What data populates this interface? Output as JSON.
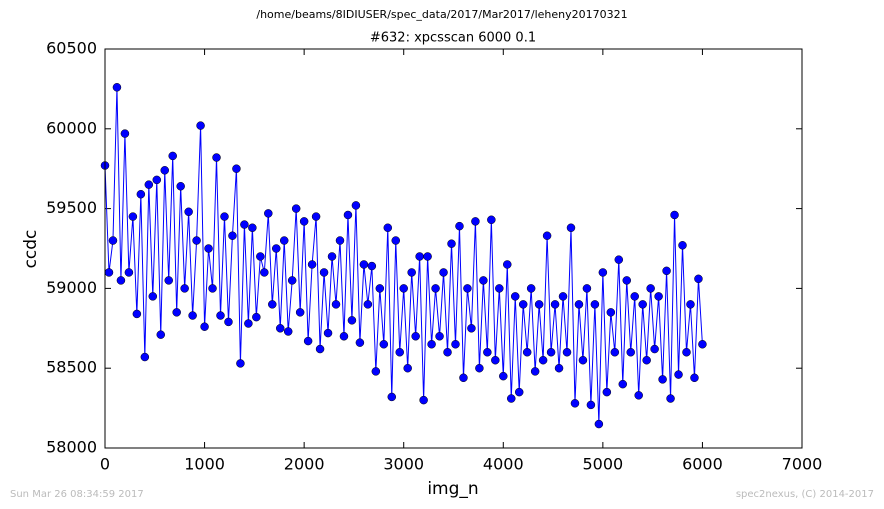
{
  "chart_data": {
    "type": "line",
    "suptitle": "/home/beams/8IDIUSER/spec_data/2017/Mar2017/leheny20170321",
    "title": "#632: xpcsscan 6000 0.1",
    "x_label": "img_n",
    "y_label": "ccdc",
    "footer_left": "Sun Mar 26 08:34:59 2017",
    "footer_right": "spec2nexus, (C) 2014-2017",
    "color": "#0000ff",
    "marker": true,
    "xlim": [
      0,
      7000
    ],
    "xticks": [
      0,
      1000,
      2000,
      3000,
      4000,
      5000,
      6000,
      7000
    ],
    "ylim": [
      58000,
      60500
    ],
    "yticks": [
      58000,
      58500,
      59000,
      59500,
      60000,
      60500
    ],
    "x": [
      0,
      40,
      80,
      120,
      160,
      200,
      240,
      280,
      320,
      360,
      400,
      440,
      480,
      520,
      560,
      600,
      640,
      680,
      720,
      760,
      800,
      840,
      880,
      920,
      960,
      1000,
      1040,
      1080,
      1120,
      1160,
      1200,
      1240,
      1280,
      1320,
      1360,
      1400,
      1440,
      1480,
      1520,
      1560,
      1600,
      1640,
      1680,
      1720,
      1760,
      1800,
      1840,
      1880,
      1920,
      1960,
      2000,
      2040,
      2080,
      2120,
      2160,
      2200,
      2240,
      2280,
      2320,
      2360,
      2400,
      2440,
      2480,
      2520,
      2560,
      2600,
      2640,
      2680,
      2720,
      2760,
      2800,
      2840,
      2880,
      2920,
      2960,
      3000,
      3040,
      3080,
      3120,
      3160,
      3200,
      3240,
      3280,
      3320,
      3360,
      3400,
      3440,
      3480,
      3520,
      3560,
      3600,
      3640,
      3680,
      3720,
      3760,
      3800,
      3840,
      3880,
      3920,
      3960,
      4000,
      4040,
      4080,
      4120,
      4160,
      4200,
      4240,
      4280,
      4320,
      4360,
      4400,
      4440,
      4480,
      4520,
      4560,
      4600,
      4640,
      4680,
      4720,
      4760,
      4800,
      4840,
      4880,
      4920,
      4960,
      5000,
      5040,
      5080,
      5120,
      5160,
      5200,
      5240,
      5280,
      5320,
      5360,
      5400,
      5440,
      5480,
      5520,
      5560,
      5600,
      5640,
      5680,
      5720,
      5760,
      5800,
      5840,
      5880,
      5920,
      5960,
      6000
    ],
    "values": [
      59770,
      59100,
      59300,
      60260,
      59050,
      59970,
      59100,
      59450,
      58840,
      59590,
      58570,
      59650,
      58950,
      59680,
      58710,
      59740,
      59050,
      59830,
      58850,
      59640,
      59000,
      59480,
      58830,
      59300,
      60020,
      58760,
      59250,
      59000,
      59820,
      58830,
      59450,
      58790,
      59330,
      59750,
      58530,
      59400,
      58780,
      59380,
      58820,
      59200,
      59100,
      59470,
      58900,
      59250,
      58750,
      59300,
      58730,
      59050,
      59500,
      58850,
      59420,
      58670,
      59150,
      59450,
      58620,
      59100,
      58720,
      59200,
      58900,
      59300,
      58700,
      59460,
      58800,
      59520,
      58660,
      59150,
      58900,
      59140,
      58480,
      59000,
      58650,
      59380,
      58320,
      59300,
      58600,
      59000,
      58500,
      59100,
      58700,
      59200,
      58300,
      59200,
      58650,
      59000,
      58700,
      59100,
      58600,
      59280,
      58650,
      59390,
      58440,
      59000,
      58750,
      59420,
      58500,
      59050,
      58600,
      59430,
      58550,
      59000,
      58450,
      59150,
      58310,
      58950,
      58350,
      58900,
      58600,
      59000,
      58480,
      58900,
      58550,
      59330,
      58600,
      58900,
      58500,
      58950,
      58600,
      59380,
      58280,
      58900,
      58550,
      59000,
      58270,
      58900,
      58150,
      59100,
      58350,
      58850,
      58600,
      59180,
      58400,
      59050,
      58600,
      58950,
      58330,
      58900,
      58550,
      59000,
      58620,
      58950,
      58430,
      59110,
      58310,
      59460,
      58460,
      59270,
      58600,
      58900,
      58440,
      59060,
      58650
    ]
  }
}
